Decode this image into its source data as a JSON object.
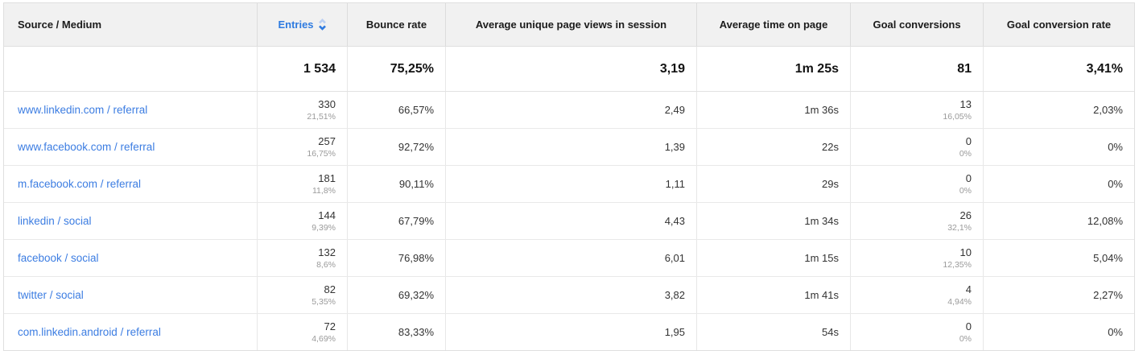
{
  "colors": {
    "header_bg": "#f1f1f1",
    "border": "#e0e0e0",
    "link_blue": "#3c7de2",
    "accent_blue": "#2e7be0",
    "sort_icon_inactive": "#b9cff2",
    "sub_text_gray": "#9a9a9a"
  },
  "sort": {
    "column": "Entries",
    "direction": "desc"
  },
  "table": {
    "columns": [
      {
        "label": "Source / Medium"
      },
      {
        "label": "Entries"
      },
      {
        "label": "Bounce rate"
      },
      {
        "label": "Average unique page views in session"
      },
      {
        "label": "Average time on page"
      },
      {
        "label": "Goal conversions"
      },
      {
        "label": "Goal conversion rate"
      }
    ],
    "summary": {
      "entries": "1 534",
      "bounce_rate": "75,25%",
      "avg_unique_page_views": "3,19",
      "avg_time_on_page": "1m 25s",
      "goal_conversions": "81",
      "goal_conversion_rate": "3,41%"
    },
    "rows": [
      {
        "source_medium": "www.linkedin.com / referral",
        "entries": "330",
        "entries_share": "21,51%",
        "bounce_rate": "66,57%",
        "avg_unique_page_views": "2,49",
        "avg_time_on_page": "1m 36s",
        "goal_conversions": "13",
        "goal_conversions_share": "16,05%",
        "goal_conversion_rate": "2,03%"
      },
      {
        "source_medium": "www.facebook.com / referral",
        "entries": "257",
        "entries_share": "16,75%",
        "bounce_rate": "92,72%",
        "avg_unique_page_views": "1,39",
        "avg_time_on_page": "22s",
        "goal_conversions": "0",
        "goal_conversions_share": "0%",
        "goal_conversion_rate": "0%"
      },
      {
        "source_medium": "m.facebook.com / referral",
        "entries": "181",
        "entries_share": "11,8%",
        "bounce_rate": "90,11%",
        "avg_unique_page_views": "1,11",
        "avg_time_on_page": "29s",
        "goal_conversions": "0",
        "goal_conversions_share": "0%",
        "goal_conversion_rate": "0%"
      },
      {
        "source_medium": "linkedin / social",
        "entries": "144",
        "entries_share": "9,39%",
        "bounce_rate": "67,79%",
        "avg_unique_page_views": "4,43",
        "avg_time_on_page": "1m 34s",
        "goal_conversions": "26",
        "goal_conversions_share": "32,1%",
        "goal_conversion_rate": "12,08%"
      },
      {
        "source_medium": "facebook / social",
        "entries": "132",
        "entries_share": "8,6%",
        "bounce_rate": "76,98%",
        "avg_unique_page_views": "6,01",
        "avg_time_on_page": "1m 15s",
        "goal_conversions": "10",
        "goal_conversions_share": "12,35%",
        "goal_conversion_rate": "5,04%"
      },
      {
        "source_medium": "twitter / social",
        "entries": "82",
        "entries_share": "5,35%",
        "bounce_rate": "69,32%",
        "avg_unique_page_views": "3,82",
        "avg_time_on_page": "1m 41s",
        "goal_conversions": "4",
        "goal_conversions_share": "4,94%",
        "goal_conversion_rate": "2,27%"
      },
      {
        "source_medium": "com.linkedin.android / referral",
        "entries": "72",
        "entries_share": "4,69%",
        "bounce_rate": "83,33%",
        "avg_unique_page_views": "1,95",
        "avg_time_on_page": "54s",
        "goal_conversions": "0",
        "goal_conversions_share": "0%",
        "goal_conversion_rate": "0%"
      }
    ]
  }
}
